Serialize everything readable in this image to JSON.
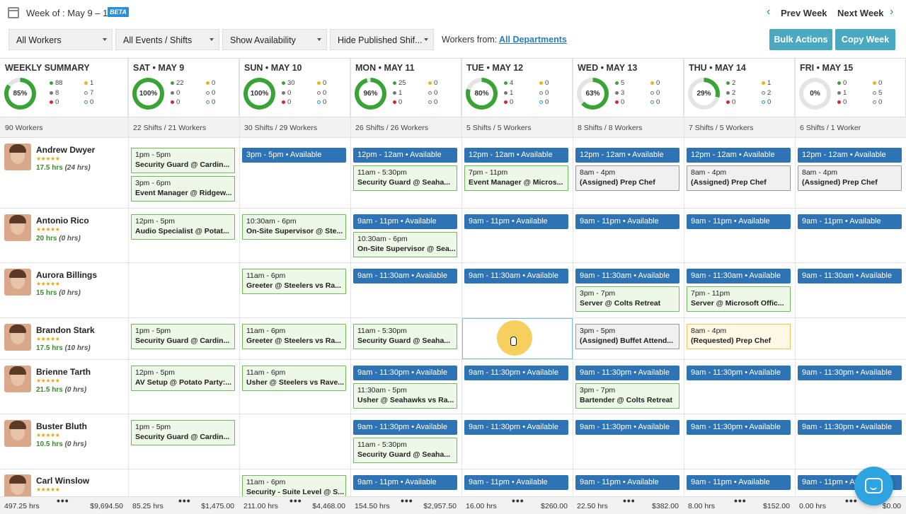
{
  "header": {
    "week_label": "Week of : May 9 – 15",
    "beta": "BETA",
    "prev": "Prev Week",
    "next": "Next Week"
  },
  "filters": {
    "workers": "All Workers",
    "events": "All Events / Shifts",
    "availability": "Show Availability",
    "published": "Hide Published Shif...",
    "workers_from_label": "Workers from:",
    "departments": "All Departments",
    "bulk": "Bulk Actions",
    "copy": "Copy Week"
  },
  "days": [
    {
      "title": "WEEKLY SUMMARY",
      "pct": "85%",
      "pct_val": 85,
      "g": "88",
      "gr": "8",
      "r": "0",
      "y": "1",
      "h": "7",
      "b": "0",
      "summary": "90 Workers"
    },
    {
      "title": "SAT • MAY 9",
      "pct": "100%",
      "pct_val": 100,
      "g": "22",
      "gr": "0",
      "r": "0",
      "y": "0",
      "h": "0",
      "b": "0",
      "summary": "22 Shifts / 21 Workers"
    },
    {
      "title": "SUN • MAY 10",
      "pct": "100%",
      "pct_val": 100,
      "g": "30",
      "gr": "0",
      "r": "0",
      "y": "0",
      "h": "0",
      "b": "0",
      "summary": "30 Shifts / 29 Workers"
    },
    {
      "title": "MON • MAY 11",
      "pct": "96%",
      "pct_val": 96,
      "g": "25",
      "gr": "1",
      "r": "0",
      "y": "0",
      "h": "0",
      "b": "0",
      "summary": "26 Shifts / 26 Workers"
    },
    {
      "title": "TUE • MAY 12",
      "pct": "80%",
      "pct_val": 80,
      "g": "4",
      "gr": "1",
      "r": "0",
      "y": "0",
      "h": "0",
      "b": "0",
      "summary": "5 Shifts / 5 Workers"
    },
    {
      "title": "WED • MAY 13",
      "pct": "63%",
      "pct_val": 63,
      "g": "5",
      "gr": "3",
      "r": "0",
      "y": "0",
      "h": "0",
      "b": "0",
      "summary": "8 Shifts / 8 Workers"
    },
    {
      "title": "THU • MAY 14",
      "pct": "29%",
      "pct_val": 29,
      "g": "2",
      "gr": "2",
      "r": "0",
      "y": "1",
      "h": "2",
      "b": "0",
      "summary": "7 Shifts / 5 Workers"
    },
    {
      "title": "FRI • MAY 15",
      "pct": "0%",
      "pct_val": 0,
      "g": "0",
      "gr": "1",
      "r": "0",
      "y": "0",
      "h": "5",
      "b": "0",
      "summary": "6 Shifts / 1 Worker"
    }
  ],
  "workers": [
    {
      "name": "Andrew Dwyer",
      "stars": "★★★★★",
      "hrs": "17.5 hrs",
      "sched": "(24 hrs)"
    },
    {
      "name": "Antonio Rico",
      "stars": "★★★★★",
      "hrs": "20 hrs",
      "sched": "(0 hrs)"
    },
    {
      "name": "Aurora Billings",
      "stars": "★★★★★",
      "hrs": "15 hrs",
      "sched": "(0 hrs)"
    },
    {
      "name": "Brandon Stark",
      "stars": "★★★★★",
      "hrs": "17.5 hrs",
      "sched": "(10 hrs)"
    },
    {
      "name": "Brienne Tarth",
      "stars": "★★★★★",
      "hrs": "21.5 hrs",
      "sched": "(0 hrs)"
    },
    {
      "name": "Buster Bluth",
      "stars": "★★★★★",
      "hrs": "10.5 hrs",
      "sched": "(0 hrs)"
    },
    {
      "name": "Carl Winslow",
      "stars": "★★★★★",
      "hrs": "",
      "sched": ""
    }
  ],
  "cells": {
    "avail": {
      "r0": {
        "c2": "3pm - 5pm • Available",
        "c3": "12pm - 12am • Available",
        "c4": "12pm - 12am • Available",
        "c5": "12pm - 12am • Available",
        "c6": "12pm - 12am • Available",
        "c7": "12pm - 12am • Available"
      },
      "r1": {
        "c3": "9am - 11pm • Available",
        "c4": "9am - 11pm • Available",
        "c5": "9am - 11pm • Available",
        "c6": "9am - 11pm • Available",
        "c7": "9am - 11pm • Available"
      },
      "r2": {
        "c3": "9am - 11:30am • Available",
        "c4": "9am - 11:30am • Available",
        "c5": "9am - 11:30am • Available",
        "c6": "9am - 11:30am • Available",
        "c7": "9am - 11:30am • Available"
      },
      "r4": {
        "c3": "9am - 11:30pm • Available",
        "c4": "9am - 11:30pm • Available",
        "c5": "9am - 11:30pm • Available",
        "c6": "9am - 11:30pm • Available",
        "c7": "9am - 11:30pm • Available"
      },
      "r5": {
        "c3": "9am - 11:30pm • Available",
        "c4": "9am - 11:30pm • Available",
        "c5": "9am - 11:30pm • Available",
        "c6": "9am - 11:30pm • Available",
        "c7": "9am - 11:30pm • Available"
      },
      "r6": {
        "c3": "9am - 11pm • Available",
        "c4": "9am - 11pm • Available",
        "c5": "9am - 11pm • Available",
        "c6": "9am - 11pm • Available",
        "c7": "9am - 11pm • Available"
      }
    },
    "shifts": {
      "s1": {
        "t": "1pm - 5pm",
        "r": "Security Guard @ Cardin..."
      },
      "s2": {
        "t": "3pm - 6pm",
        "r": "Event Manager @ Ridgew..."
      },
      "s3": {
        "t": "11am - 5:30pm",
        "r": "Security Guard @ Seaha..."
      },
      "s4": {
        "t": "7pm - 11pm",
        "r": "Event Manager @ Micros..."
      },
      "s5": {
        "t": "8am - 4pm",
        "r": "(Assigned) Prep Chef"
      },
      "s6": {
        "t": "8am - 4pm",
        "r": "(Assigned) Prep Chef"
      },
      "s7": {
        "t": "8am - 4pm",
        "r": "(Assigned) Prep Chef"
      },
      "s8": {
        "t": "12pm - 5pm",
        "r": "Audio Specialist @ Potat..."
      },
      "s9": {
        "t": "10:30am - 6pm",
        "r": "On-Site Supervisor @ Ste..."
      },
      "s10": {
        "t": "10:30am - 6pm",
        "r": "On-Site Supervisor @ Sea..."
      },
      "s11": {
        "t": "11am - 6pm",
        "r": "Greeter @ Steelers vs Ra..."
      },
      "s12": {
        "t": "3pm - 7pm",
        "r": "Server @ Colts Retreat"
      },
      "s13": {
        "t": "7pm - 11pm",
        "r": "Server @ Microsoft Offic..."
      },
      "s14": {
        "t": "1pm - 5pm",
        "r": "Security Guard @ Cardin..."
      },
      "s15": {
        "t": "11am - 6pm",
        "r": "Greeter @ Steelers vs Ra..."
      },
      "s16": {
        "t": "11am - 5:30pm",
        "r": "Security Guard @ Seaha..."
      },
      "s17": {
        "t": "3pm - 5pm",
        "r": "(Assigned) Buffet Attend..."
      },
      "s18": {
        "t": "8am - 4pm",
        "r": "(Requested) Prep Chef"
      },
      "s19": {
        "t": "12pm - 5pm",
        "r": "AV Setup @ Potato Party:..."
      },
      "s20": {
        "t": "11am - 6pm",
        "r": "Usher @ Steelers vs Rave..."
      },
      "s21": {
        "t": "11:30am - 5pm",
        "r": "Usher @ Seahawks vs Ra..."
      },
      "s22": {
        "t": "3pm - 7pm",
        "r": "Bartender @ Colts Retreat"
      },
      "s23": {
        "t": "1pm - 5pm",
        "r": "Security Guard @ Cardin..."
      },
      "s24": {
        "t": "11am - 5:30pm",
        "r": "Security Guard @ Seaha..."
      },
      "s25": {
        "t": "11am - 6pm",
        "r": "Security - Suite Level @ S..."
      }
    }
  },
  "footer": [
    {
      "hrs": "497.25 hrs",
      "amt": "$9,694.50"
    },
    {
      "hrs": "85.25 hrs",
      "amt": "$1,475.00"
    },
    {
      "hrs": "211.00 hrs",
      "amt": "$4,468.00"
    },
    {
      "hrs": "154.50 hrs",
      "amt": "$2,957.50"
    },
    {
      "hrs": "16.00 hrs",
      "amt": "$260.00"
    },
    {
      "hrs": "22.50 hrs",
      "amt": "$382.00"
    },
    {
      "hrs": "8.00 hrs",
      "amt": "$152.00"
    },
    {
      "hrs": "0.00 hrs",
      "amt": "$0.00"
    }
  ],
  "colors": {
    "available": "#2e73b3",
    "shift_border": "#6fbb5c",
    "accent_teal": "#4aa8c0",
    "green": "#3aa335"
  }
}
